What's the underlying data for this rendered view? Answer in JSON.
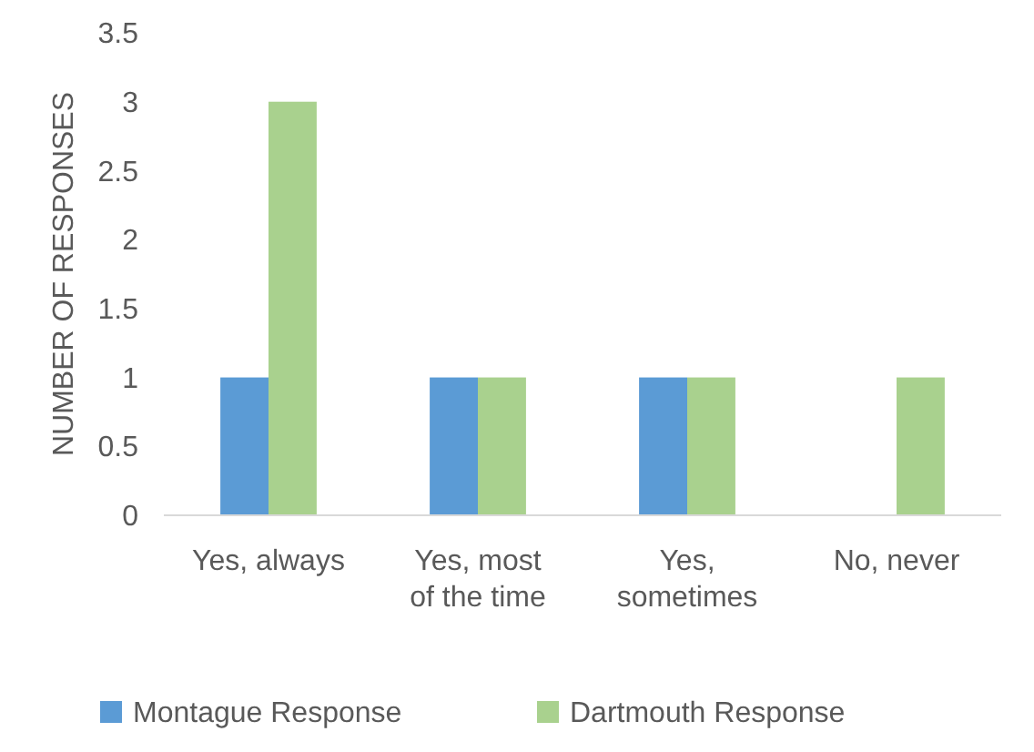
{
  "chart_data": {
    "type": "bar",
    "ylabel": "NUMBER OF RESPONSES",
    "categories": [
      "Yes, always",
      "Yes, most of the time",
      "Yes, sometimes",
      "No, never"
    ],
    "series": [
      {
        "name": "Montague Response",
        "color": "#5b9bd5",
        "values": [
          1,
          1,
          1,
          0
        ]
      },
      {
        "name": "Dartmouth Response",
        "color": "#a9d18e",
        "values": [
          3,
          1,
          1,
          1
        ]
      }
    ],
    "ylim": [
      0,
      3.5
    ],
    "yticks": [
      0,
      0.5,
      1,
      1.5,
      2,
      2.5,
      3,
      3.5
    ],
    "grid": false,
    "legend": "bottom"
  }
}
